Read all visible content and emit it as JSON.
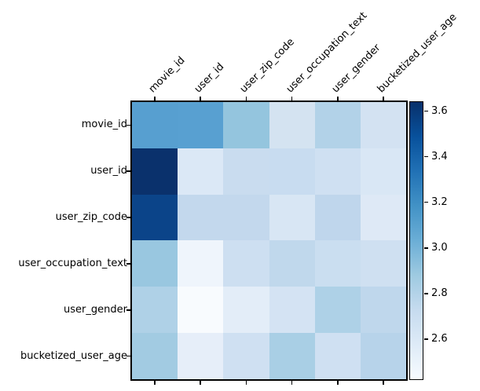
{
  "figure": {
    "background": "#ffffff",
    "text_color": "#000000",
    "axis_color": "#000000"
  },
  "chart_data": {
    "type": "heatmap",
    "title": "",
    "xlabel": "",
    "ylabel": "",
    "colormap": "Blues",
    "grid": false,
    "x_categories": [
      "movie_id",
      "user_id",
      "user_zip_code",
      "user_occupation_text",
      "user_gender",
      "bucketized_user_age"
    ],
    "y_categories": [
      "movie_id",
      "user_id",
      "user_zip_code",
      "user_occupation_text",
      "user_gender",
      "bucketized_user_age"
    ],
    "x_tick_rotation_deg": 45,
    "values": [
      [
        3.1,
        3.1,
        2.91,
        2.63,
        2.8,
        2.63
      ],
      [
        3.64,
        2.58,
        2.71,
        2.71,
        2.66,
        2.59
      ],
      [
        3.54,
        2.75,
        2.75,
        2.6,
        2.77,
        2.56
      ],
      [
        2.89,
        2.47,
        2.68,
        2.76,
        2.69,
        2.68
      ],
      [
        2.81,
        2.43,
        2.54,
        2.62,
        2.82,
        2.77
      ],
      [
        2.86,
        2.53,
        2.66,
        2.83,
        2.66,
        2.79
      ]
    ],
    "cell_colors": [
      [
        "#579fd0",
        "#58a0d1",
        "#94c5de",
        "#d4e3f1",
        "#b2d2e8",
        "#d3e2f2"
      ],
      [
        "#0a316c",
        "#dbe8f6",
        "#c9dcef",
        "#c8dcf0",
        "#cfe0f2",
        "#d9e7f5"
      ],
      [
        "#0b4489",
        "#c3d8ed",
        "#c3d8ed",
        "#d8e6f4",
        "#bfd6ec",
        "#dee9f6"
      ],
      [
        "#99c7e0",
        "#eff5fc",
        "#cddff1",
        "#c0d8ec",
        "#cadef0",
        "#cfe0f1"
      ],
      [
        "#afd1e7",
        "#f8fbfe",
        "#e3edf8",
        "#d4e3f3",
        "#aed1e7",
        "#bfd7ec"
      ],
      [
        "#a2cbe2",
        "#e6eef9",
        "#cfe0f2",
        "#a9cfe5",
        "#cfe0f2",
        "#b7d3ea"
      ]
    ],
    "colorbar": {
      "position": "right",
      "tick_labels": [
        "3.6",
        "3.4",
        "3.2",
        "3.0",
        "2.8",
        "2.6"
      ],
      "tick_values": [
        3.6,
        3.4,
        3.2,
        3.0,
        2.8,
        2.6
      ],
      "vmin": 2.422,
      "vmax": 3.638,
      "gradient_top_to_bottom": [
        "#08306b",
        "#08519c",
        "#2171b5",
        "#4292c6",
        "#6baed6",
        "#9ecae1",
        "#c6dbef",
        "#deebf7",
        "#f7fbff"
      ]
    }
  }
}
